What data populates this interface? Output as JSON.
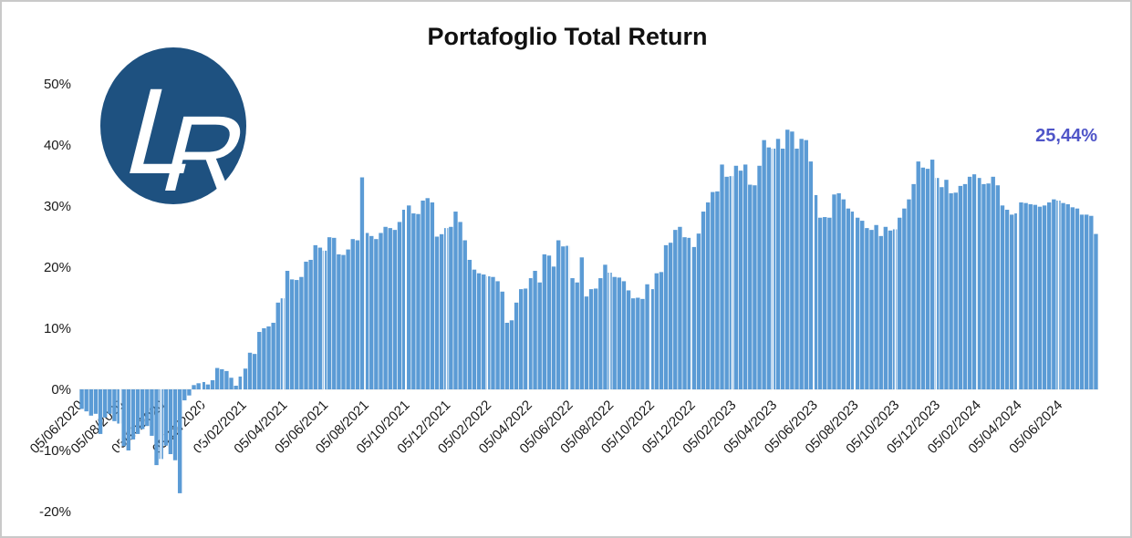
{
  "title": "Portafoglio Total Return",
  "logo": {
    "letter_l": "L",
    "letter_r": "R",
    "bg_color": "#1E5180",
    "letter_color": "#ffffff"
  },
  "annotation": {
    "final_value_label": "25,44%",
    "color": "#4F55C8"
  },
  "chart_data": {
    "type": "bar",
    "title": "Portafoglio Total Return",
    "xlabel": "",
    "ylabel": "",
    "ylim": [
      -20,
      50
    ],
    "grid": "vertical-white-category-lines",
    "legend": "none",
    "bar_color": "#5B9BD5",
    "x_unit": "weekly observations, dates DD/MM/YYYY",
    "final_value": 25.44,
    "y_ticks": [
      50,
      40,
      30,
      20,
      10,
      0,
      -10,
      -20
    ],
    "y_tick_labels": [
      "50%",
      "40%",
      "30%",
      "20%",
      "10%",
      "0%",
      "-10%",
      "-20%"
    ],
    "x_tick_labels": [
      "05/06/2020",
      "05/08/2020",
      "05/10/2020",
      "05/12/2020",
      "05/02/2021",
      "05/04/2021",
      "05/06/2021",
      "05/08/2021",
      "05/10/2021",
      "05/12/2021",
      "05/02/2022",
      "05/04/2022",
      "05/06/2022",
      "05/08/2022",
      "05/10/2022",
      "05/12/2022",
      "05/02/2023",
      "05/04/2023",
      "05/06/2023",
      "05/08/2023",
      "05/10/2023",
      "05/12/2023",
      "05/02/2024",
      "05/04/2024",
      "05/06/2024"
    ],
    "series": [
      {
        "name": "Portafoglio Total Return (%)",
        "values": [
          -3.2,
          -3.6,
          -4.3,
          -4.0,
          -7.3,
          -4.6,
          -4.0,
          -5.2,
          -5.6,
          -9.3,
          -10.0,
          -8.2,
          -7.3,
          -6.5,
          -6.0,
          -7.6,
          -12.4,
          -11.4,
          -9.2,
          -10.6,
          -11.6,
          -17.0,
          -1.8,
          -1.0,
          0.7,
          1.0,
          1.2,
          0.8,
          1.5,
          3.5,
          3.3,
          3.0,
          1.9,
          0.6,
          2.1,
          3.4,
          6.0,
          5.8,
          9.4,
          10.0,
          10.3,
          10.9,
          14.2,
          14.9,
          19.4,
          18.0,
          17.9,
          18.4,
          20.9,
          21.2,
          23.6,
          23.2,
          22.7,
          24.9,
          24.8,
          22.1,
          22.0,
          22.9,
          24.6,
          24.4,
          34.7,
          25.6,
          25.1,
          24.6,
          25.6,
          26.6,
          26.4,
          26.1,
          27.4,
          29.4,
          30.1,
          28.8,
          28.7,
          30.9,
          31.3,
          30.6,
          25.0,
          25.4,
          26.4,
          26.6,
          29.1,
          27.4,
          24.4,
          21.2,
          19.6,
          19.0,
          18.8,
          18.5,
          18.4,
          17.7,
          16.0,
          10.9,
          11.3,
          14.2,
          16.4,
          16.5,
          18.2,
          19.4,
          17.5,
          22.1,
          21.9,
          20.1,
          24.4,
          23.4,
          23.5,
          18.2,
          17.5,
          21.6,
          15.2,
          16.4,
          16.5,
          18.2,
          20.4,
          19.1,
          18.4,
          18.3,
          17.7,
          16.2,
          14.9,
          15.0,
          14.8,
          17.2,
          16.4,
          19.0,
          19.2,
          23.6,
          24.0,
          26.1,
          26.6,
          24.9,
          24.8,
          23.3,
          25.5,
          29.1,
          30.6,
          32.3,
          32.4,
          36.8,
          34.8,
          34.9,
          36.6,
          35.8,
          36.8,
          33.5,
          33.4,
          36.6,
          40.8,
          39.6,
          39.4,
          41.0,
          39.4,
          42.5,
          42.2,
          39.4,
          41.0,
          40.8,
          37.3,
          31.8,
          28.1,
          28.2,
          28.1,
          31.9,
          32.1,
          31.1,
          29.6,
          29.1,
          28.1,
          27.6,
          26.4,
          26.1,
          26.9,
          25.1,
          26.6,
          26.0,
          26.2,
          28.1,
          29.6,
          31.1,
          33.6,
          37.3,
          36.3,
          36.1,
          37.6,
          34.6,
          33.1,
          34.3,
          32.1,
          32.2,
          33.3,
          33.6,
          34.8,
          35.2,
          34.6,
          33.6,
          33.7,
          34.8,
          33.4,
          30.1,
          29.4,
          28.6,
          28.8,
          30.6,
          30.5,
          30.3,
          30.2,
          29.9,
          30.1,
          30.6,
          31.1,
          30.9,
          30.5,
          30.3,
          29.8,
          29.6,
          28.6,
          28.6,
          28.4,
          25.44
        ]
      }
    ]
  }
}
